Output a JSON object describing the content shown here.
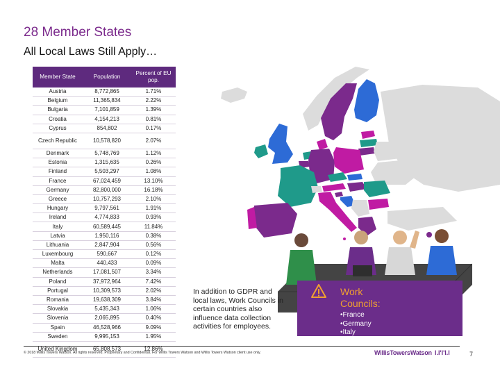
{
  "title": "28 Member States",
  "subtitle": "All Local Laws Still Apply…",
  "table": {
    "headers": [
      "Member State",
      "Population",
      "Percent of EU pop."
    ],
    "rows": [
      [
        "Austria",
        "8,772,865",
        "1.71%"
      ],
      [
        "Belgium",
        "11,365,834",
        "2.22%"
      ],
      [
        "Bulgaria",
        "7,101,859",
        "1.39%"
      ],
      [
        "Croatia",
        "4,154,213",
        "0.81%"
      ],
      [
        "Cyprus",
        "854,802",
        "0.17%"
      ],
      [
        "Czech Republic",
        "10,578,820",
        "2.07%"
      ],
      [
        "Denmark",
        "5,748,769",
        "1.12%"
      ],
      [
        "Estonia",
        "1,315,635",
        "0.26%"
      ],
      [
        "Finland",
        "5,503,297",
        "1.08%"
      ],
      [
        "France",
        "67,024,459",
        "13.10%"
      ],
      [
        "Germany",
        "82,800,000",
        "16.18%"
      ],
      [
        "Greece",
        "10,757,293",
        "2.10%"
      ],
      [
        "Hungary",
        "9,797,561",
        "1.91%"
      ],
      [
        "Ireland",
        "4,774,833",
        "0.93%"
      ],
      [
        "Italy",
        "60,589,445",
        "11.84%"
      ],
      [
        "Latvia",
        "1,950,116",
        "0.38%"
      ],
      [
        "Lithuania",
        "2,847,904",
        "0.56%"
      ],
      [
        "Luxembourg",
        "590,667",
        "0.12%"
      ],
      [
        "Malta",
        "440,433",
        "0.09%"
      ],
      [
        "Netherlands",
        "17,081,507",
        "3.34%"
      ],
      [
        "Poland",
        "37,972,964",
        "7.42%"
      ],
      [
        "Portugal",
        "10,309,573",
        "2.02%"
      ],
      [
        "Romania",
        "19,638,309",
        "3.84%"
      ],
      [
        "Slovakia",
        "5,435,343",
        "1.06%"
      ],
      [
        "Slovenia",
        "2,065,895",
        "0.40%"
      ],
      [
        "Spain",
        "46,528,966",
        "9.09%"
      ],
      [
        "Sweden",
        "9,995,153",
        "1.95%"
      ],
      [
        "United Kingdom",
        "65,808,573",
        "12.86%"
      ]
    ]
  },
  "note": "In addition to GDPR and local laws, Work Councils in certain countries also influence data collection activities for employees.",
  "work_councils": {
    "title": "Work Councils:",
    "items": [
      "•France",
      "•Germany",
      "•Italy"
    ]
  },
  "footer": {
    "copyright": "© 2018 Willis Towers Watson. All rights reserved. Proprietary and Confidential. For Willis Towers Watson and Willis Towers Watson client use only.",
    "brand": "WillisTowersWatson",
    "brand_mark": "I.I'I'I.I",
    "page": "7"
  },
  "colors": {
    "accent": "#7b2a8c",
    "header_bg": "#5e2a7e",
    "panel_bg": "#6b2d8a",
    "warning": "#f0a030",
    "map_purple": "#7b2a8c",
    "map_teal": "#1f9a8a",
    "map_magenta": "#c01ba3",
    "map_blue": "#2d6bd6",
    "map_grey": "#dcdcdc"
  }
}
